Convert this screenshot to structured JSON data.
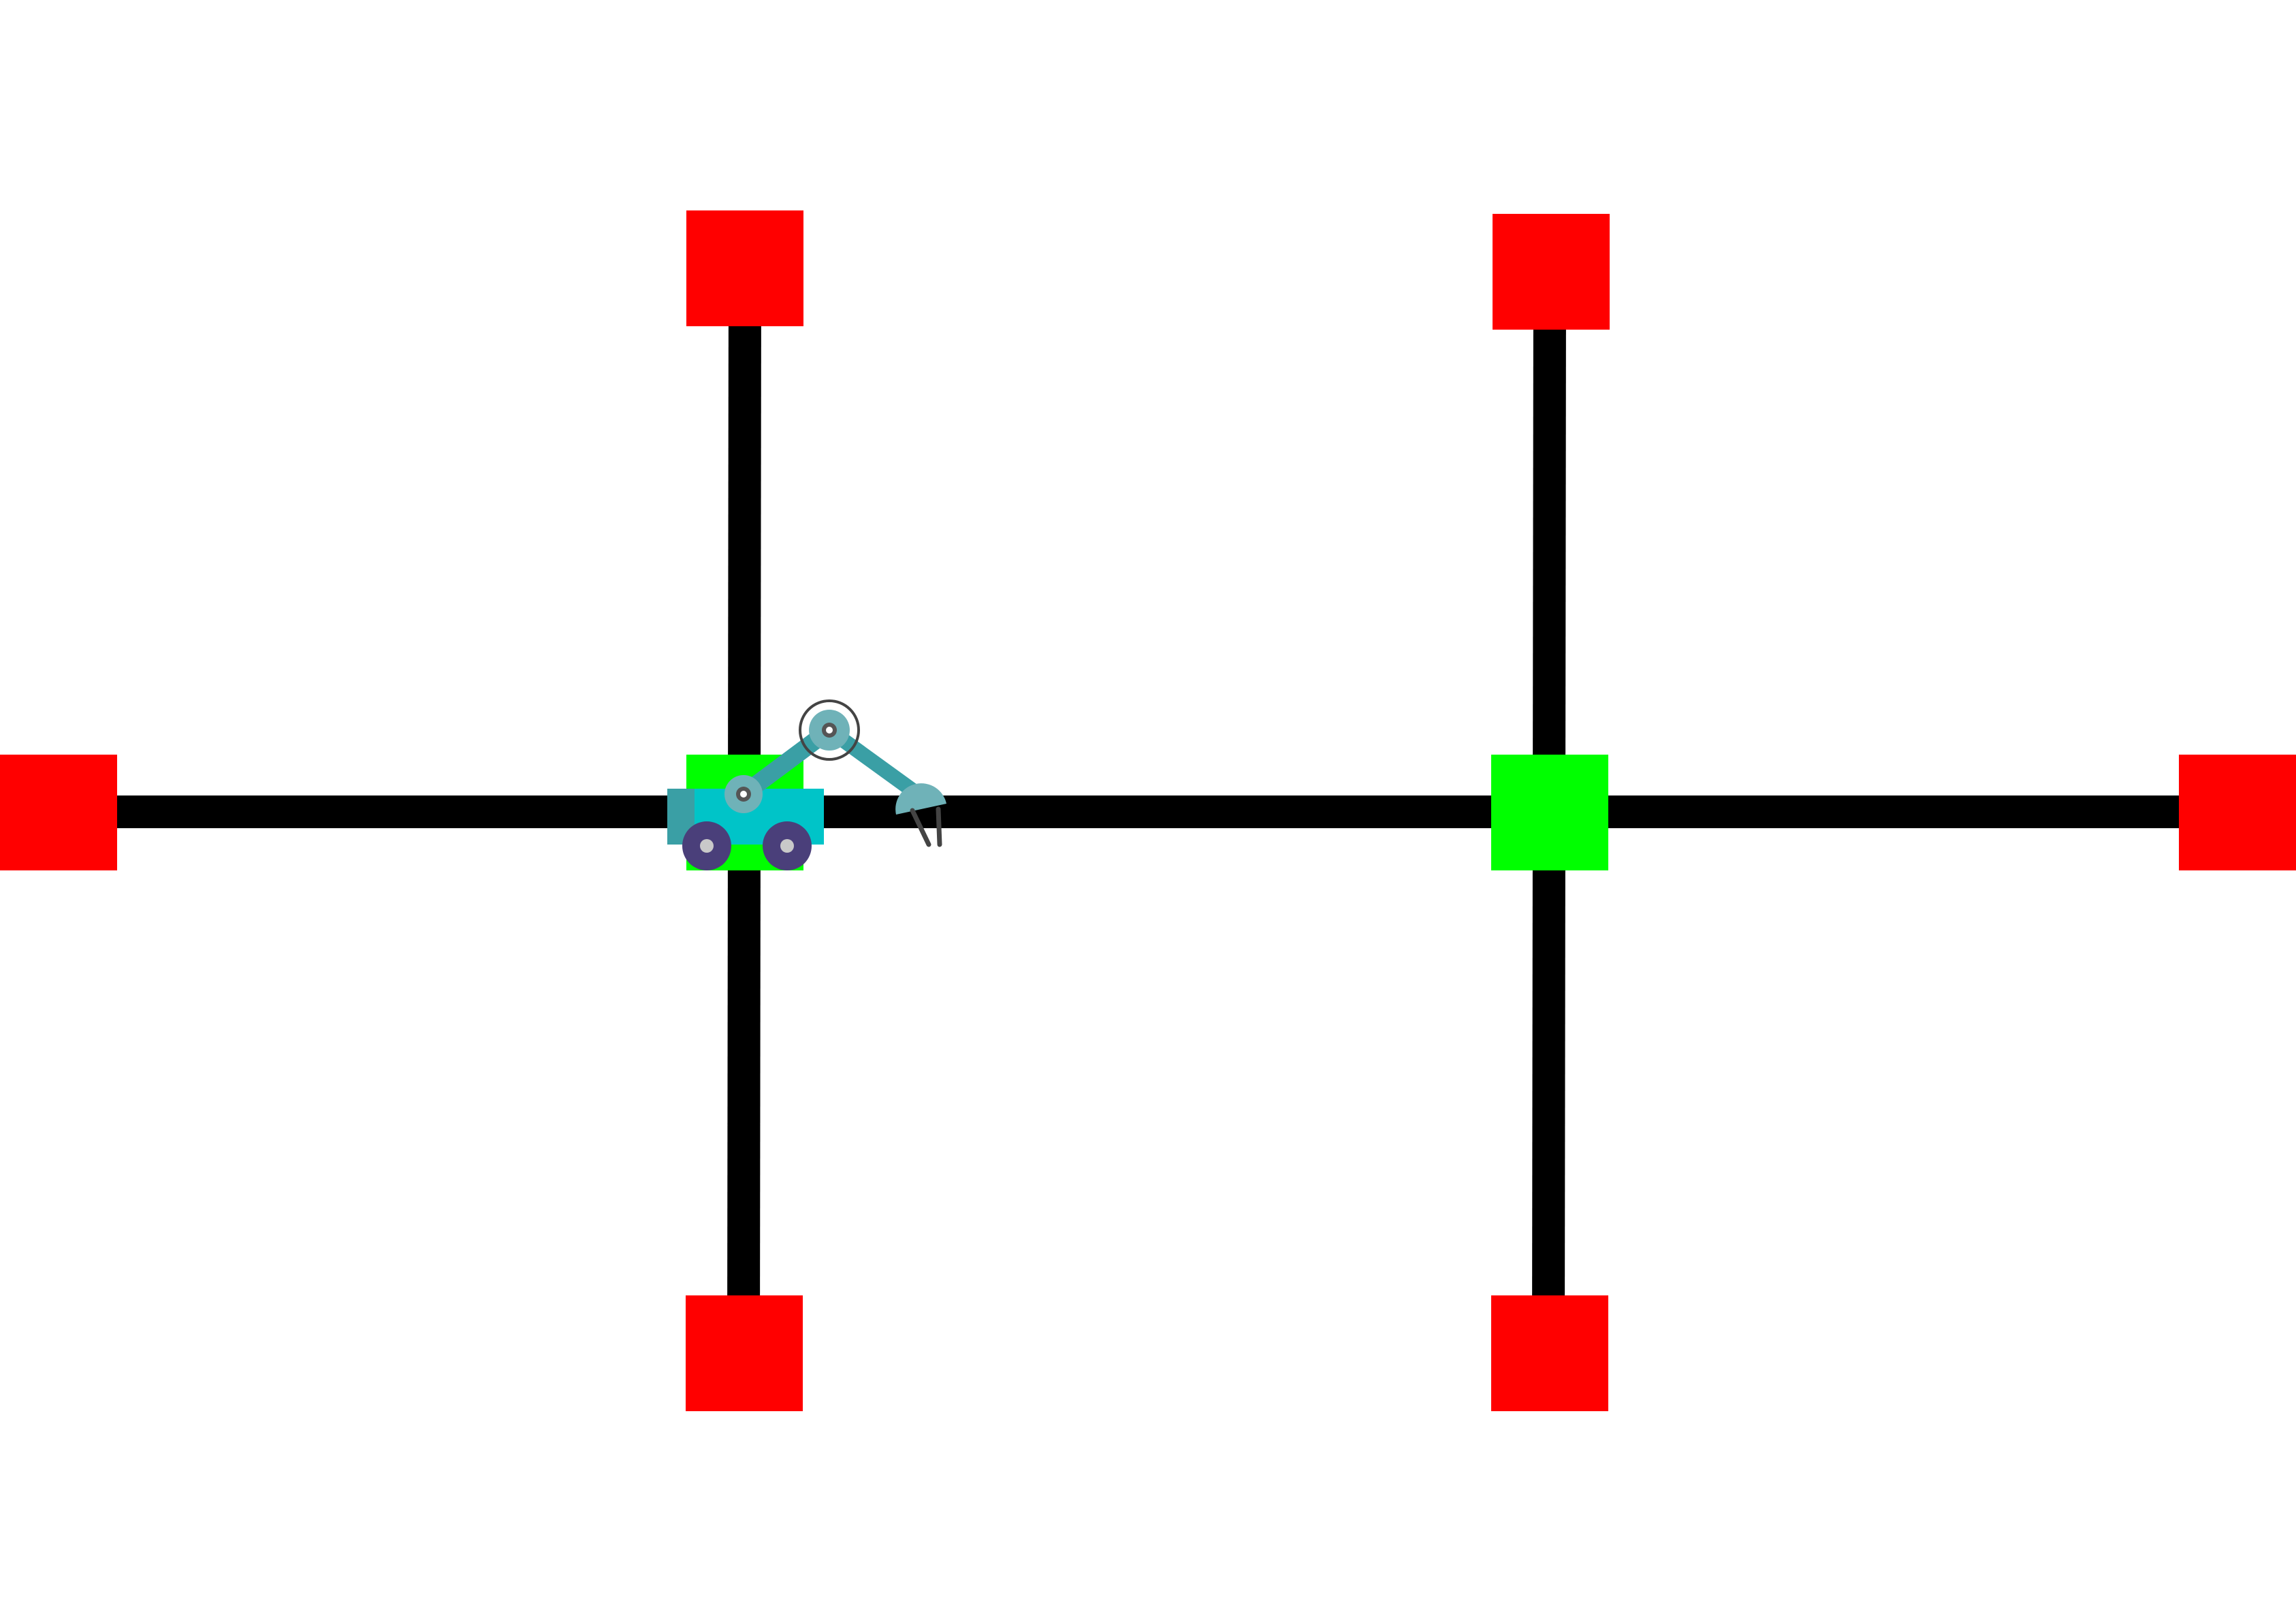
{
  "colors": {
    "background": "#ffffff",
    "track": "#000000",
    "goal_node": "#00ff00",
    "dead_end_node": "#ff0000",
    "robot_body": "#00c4c8",
    "robot_arm": "#3a9fa5",
    "robot_joint": "#6fb2b8",
    "robot_wheel": "#4a3f7a",
    "robot_wheel_hub": "#c9c9c9",
    "gripper_claw": "#444444"
  },
  "icons": {
    "robot": "mobile-manipulator-robot-icon",
    "goal_node": "green-square-node",
    "dead_end_node": "red-square-node"
  },
  "nodes": {
    "junction_left": "goal",
    "junction_right": "goal",
    "end_far_left": "dead-end",
    "end_far_right": "dead-end",
    "end_top_left": "dead-end",
    "end_bottom_left": "dead-end",
    "end_top_right": "dead-end",
    "end_bottom_right": "dead-end"
  },
  "robot": {
    "location": "junction_left"
  }
}
